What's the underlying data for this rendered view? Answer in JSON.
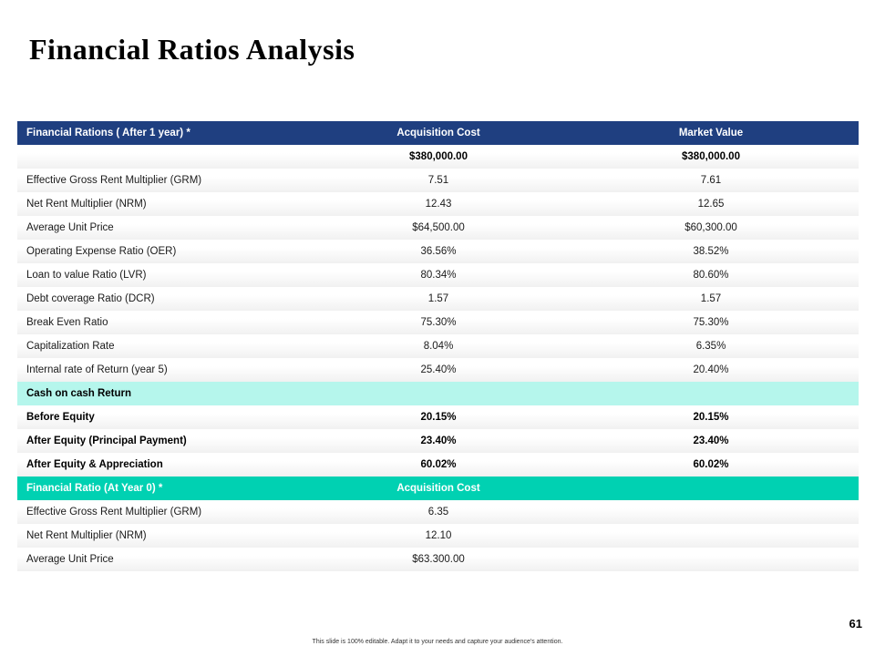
{
  "slide": {
    "title": "Financial Ratios Analysis",
    "page_number": "61",
    "footer": "This slide is 100% editable. Adapt it to your needs and capture your audience's attention."
  },
  "colors": {
    "header_navy": "#1f3f80",
    "section_mint": "#b5f6ec",
    "header_teal": "#00d1b2"
  },
  "table": {
    "header": {
      "label": "Financial Rations  ( After 1 year) *",
      "col1": "Acquisition  Cost",
      "col2": "Market Value"
    },
    "totals_row": {
      "label": "",
      "col1": "$380,000.00",
      "col2": "$380,000.00"
    },
    "rows": [
      {
        "label": "Effective Gross Rent Multiplier (GRM)",
        "col1": "7.51",
        "col2": "7.61"
      },
      {
        "label": "Net Rent Multiplier (NRM)",
        "col1": "12.43",
        "col2": "12.65"
      },
      {
        "label": "Average Unit Price",
        "col1": "$64,500.00",
        "col2": "$60,300.00"
      },
      {
        "label": "Operating Expense Ratio (OER)",
        "col1": "36.56%",
        "col2": "38.52%"
      },
      {
        "label": "Loan to value Ratio (LVR)",
        "col1": "80.34%",
        "col2": "80.60%"
      },
      {
        "label": "Debt coverage Ratio (DCR)",
        "col1": "1.57",
        "col2": "1.57"
      },
      {
        "label": "Break Even Ratio",
        "col1": "75.30%",
        "col2": "75.30%"
      },
      {
        "label": "Capitalization Rate",
        "col1": "8.04%",
        "col2": "6.35%"
      },
      {
        "label": "Internal rate of Return (year 5)",
        "col1": "25.40%",
        "col2": "20.40%"
      }
    ],
    "cash_section": {
      "label": "Cash on cash Return"
    },
    "cash_rows": [
      {
        "label": "Before Equity",
        "col1": "20.15%",
        "col2": "20.15%"
      },
      {
        "label": "After Equity  (Principal Payment)",
        "col1": "23.40%",
        "col2": "23.40%"
      },
      {
        "label": "After Equity  & Appreciation",
        "col1": "60.02%",
        "col2": "60.02%"
      }
    ],
    "header2": {
      "label": "Financial Ratio (At Year 0) *",
      "col1": "Acquisition  Cost",
      "col2": ""
    },
    "year0_rows": [
      {
        "label": "Effective Gross Rent Multiplier (GRM)",
        "col1": "6.35",
        "col2": ""
      },
      {
        "label": "Net Rent Multiplier (NRM)",
        "col1": "12.10",
        "col2": ""
      },
      {
        "label": "Average Unit Price",
        "col1": "$63.300.00",
        "col2": ""
      }
    ]
  }
}
